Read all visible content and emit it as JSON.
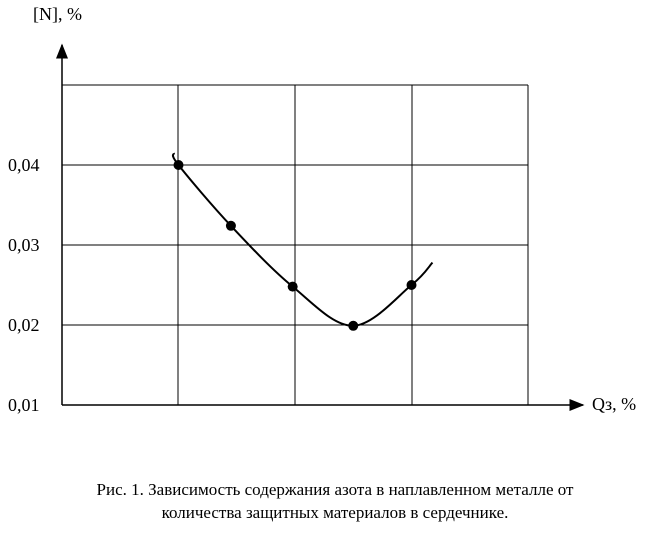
{
  "chart_data": {
    "type": "line",
    "y_label": "[N], %",
    "x_label": "Qз, %",
    "caption": [
      "Рис. 1. Зависимость содержания азота в наплавленном металле от",
      "количества защитных материалов в сердечнике."
    ],
    "xlim": [
      0,
      4
    ],
    "ylim": [
      0.01,
      0.05
    ],
    "yticks": [
      {
        "value": 0.01,
        "label": "0,01"
      },
      {
        "value": 0.02,
        "label": "0,02"
      },
      {
        "value": 0.03,
        "label": "0,03"
      },
      {
        "value": 0.04,
        "label": "0,04"
      }
    ],
    "grid": true,
    "color": "#000000",
    "curve": {
      "x": [
        0.96,
        1.0,
        1.45,
        1.98,
        2.5,
        3.0,
        3.18
      ],
      "values": [
        0.0415,
        0.04,
        0.0324,
        0.0248,
        0.0199,
        0.025,
        0.0278
      ]
    },
    "points": {
      "x": [
        1.0,
        1.45,
        1.98,
        2.5,
        3.0
      ],
      "values": [
        0.04,
        0.0324,
        0.0248,
        0.0199,
        0.025
      ]
    }
  }
}
